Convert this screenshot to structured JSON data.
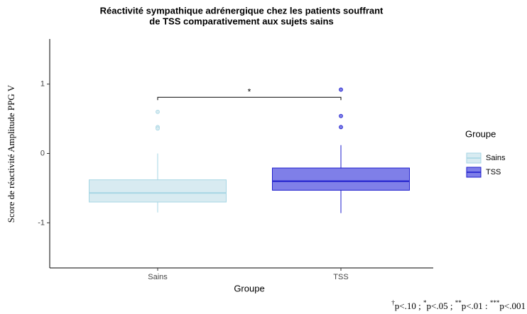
{
  "chart_data": {
    "type": "box",
    "title": [
      "Réactivité sympathique adrénergique chez les patients souffrant",
      "de TSS comparativement aux sujets sains"
    ],
    "x_label": "Groupe",
    "y_label": "Score de réactivité Amplitude PPG V",
    "categories": [
      "Sains",
      "TSS"
    ],
    "ylim": [
      -1.65,
      1.65
    ],
    "yticks": [
      -1,
      0,
      1
    ],
    "grid": false,
    "legend_title": "Groupe",
    "legend_position": "right",
    "series": [
      {
        "name": "Sains",
        "color": "#d8ebf1",
        "edge": "#a6d6e4",
        "whisker_low": -0.85,
        "q1": -0.7,
        "median": -0.57,
        "q3": -0.38,
        "whisker_high": 0.0,
        "outliers": [
          0.6,
          0.38,
          0.36
        ]
      },
      {
        "name": "TSS",
        "color": "#7f7fe8",
        "edge": "#1c1ccc",
        "whisker_low": -0.86,
        "q1": -0.53,
        "median": -0.4,
        "q3": -0.21,
        "whisker_high": 0.12,
        "outliers": [
          0.92,
          0.54,
          0.38
        ]
      }
    ],
    "significance": {
      "y": 0.81,
      "label": "*"
    },
    "footnote": [
      "†",
      "p<.10 ; ",
      "*",
      "p<.05 ; ",
      "**",
      "p<.01 : ",
      "***",
      "p<.001"
    ]
  }
}
